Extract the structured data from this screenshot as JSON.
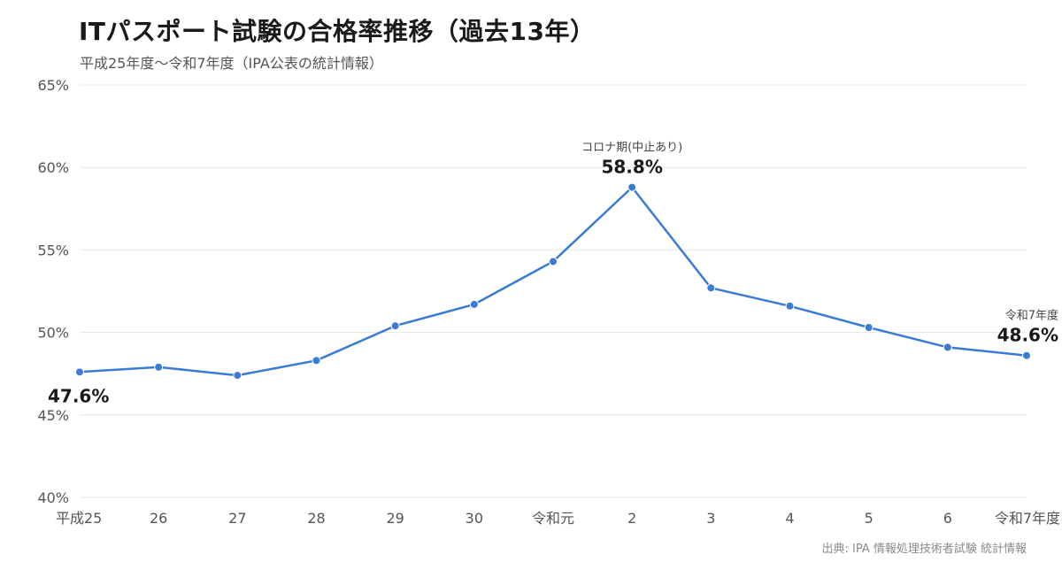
{
  "chart_data": {
    "type": "line",
    "title": "ITパスポート試験の合格率推移（過去13年）",
    "subtitle": "平成25年度〜令和7年度（IPA公表の統計情報）",
    "source": "出典: IPA 情報処理技術者試験 統計情報",
    "categories": [
      "平成25",
      "26",
      "27",
      "28",
      "29",
      "30",
      "令和元",
      "2",
      "3",
      "4",
      "5",
      "6",
      "令和7年度"
    ],
    "series": [
      {
        "values": [
          47.6,
          47.9,
          47.4,
          48.3,
          50.4,
          51.7,
          54.3,
          58.8,
          52.7,
          51.6,
          50.3,
          49.1,
          48.6
        ],
        "color": "#3a7bd5"
      }
    ],
    "ylim": [
      40,
      65
    ],
    "yticks": [
      40,
      45,
      50,
      55,
      60,
      65
    ],
    "ytick_labels": [
      "40%",
      "45%",
      "50%",
      "55%",
      "60%",
      "65%"
    ],
    "grid": true,
    "annotations": [
      {
        "index": 0,
        "value_label": "47.6%",
        "note": ""
      },
      {
        "index": 7,
        "value_label": "58.8%",
        "note": "コロナ期(中止あり)"
      },
      {
        "index": 12,
        "value_label": "48.6%",
        "note": "令和7年度"
      }
    ]
  }
}
